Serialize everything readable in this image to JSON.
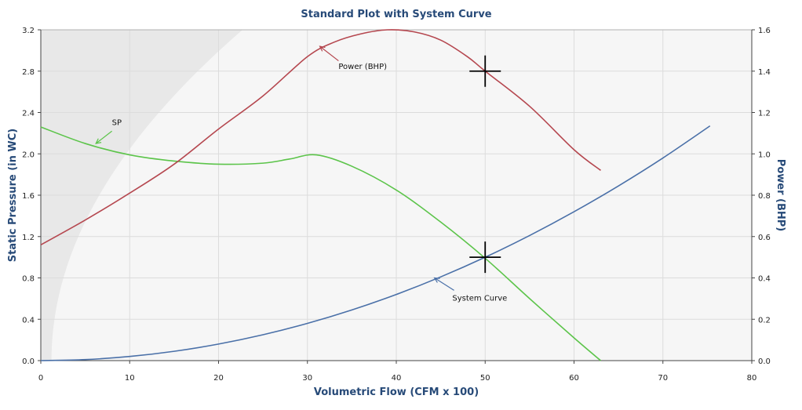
{
  "chart_data": {
    "type": "line",
    "title": "Standard Plot with System Curve",
    "xlabel": "Volumetric Flow (CFM x 100)",
    "ylabel": "Static Pressure (in WC)",
    "y2label": "Power (BHP)",
    "xlim": [
      0,
      80
    ],
    "ylim": [
      0,
      3.2
    ],
    "y2lim": [
      0,
      1.6
    ],
    "x_ticks": [
      0,
      10,
      20,
      30,
      40,
      50,
      60,
      70,
      80
    ],
    "y_ticks": [
      "0.0",
      "0.4",
      "0.8",
      "1.2",
      "1.6",
      "2.0",
      "2.4",
      "2.8",
      "3.2"
    ],
    "y2_ticks": [
      "0.0",
      "0.2",
      "0.4",
      "0.6",
      "0.8",
      "1.0",
      "1.2",
      "1.4",
      "1.6"
    ],
    "grid": true,
    "colors": {
      "sp": "#5cc44a",
      "power": "#b5474f",
      "system": "#4a70a8",
      "shade": "#e8e8e8",
      "plot_bg": "#f6f6f6",
      "title": "#274a78"
    },
    "series": [
      {
        "name": "SP",
        "axis": "left",
        "color": "#5cc44a",
        "x": [
          0,
          5,
          10,
          15,
          20,
          25,
          28,
          31,
          35,
          40,
          45,
          50,
          55,
          60,
          63
        ],
        "y": [
          2.26,
          2.1,
          1.99,
          1.93,
          1.9,
          1.91,
          1.95,
          1.99,
          1.88,
          1.65,
          1.34,
          0.99,
          0.6,
          0.22,
          0.0
        ]
      },
      {
        "name": "Power (BHP)",
        "axis": "right",
        "color": "#b5474f",
        "x": [
          0,
          5,
          10,
          15,
          20,
          25,
          30,
          33,
          36,
          39,
          42,
          45,
          48,
          50,
          55,
          60,
          63
        ],
        "y": [
          0.56,
          0.68,
          0.81,
          0.95,
          1.12,
          1.28,
          1.47,
          1.54,
          1.58,
          1.6,
          1.59,
          1.55,
          1.47,
          1.4,
          1.23,
          1.02,
          0.92
        ]
      },
      {
        "name": "System Curve",
        "axis": "left",
        "color": "#4a70a8",
        "x": [
          0,
          5,
          10,
          15,
          20,
          25,
          30,
          35,
          40,
          45,
          50,
          55,
          60,
          65,
          70,
          75.3
        ],
        "y": [
          0.0,
          0.01,
          0.04,
          0.09,
          0.16,
          0.25,
          0.36,
          0.49,
          0.64,
          0.81,
          1.0,
          1.21,
          1.44,
          1.69,
          1.96,
          2.27
        ]
      }
    ],
    "operating_points": [
      {
        "x": 50,
        "y": 1.0,
        "axis": "left"
      },
      {
        "x": 50,
        "y": 1.4,
        "axis": "right"
      }
    ],
    "annotations": [
      {
        "text": "SP",
        "series": "SP"
      },
      {
        "text": "Power (BHP)",
        "series": "Power (BHP)"
      },
      {
        "text": "System Curve",
        "series": "System Curve"
      }
    ]
  }
}
